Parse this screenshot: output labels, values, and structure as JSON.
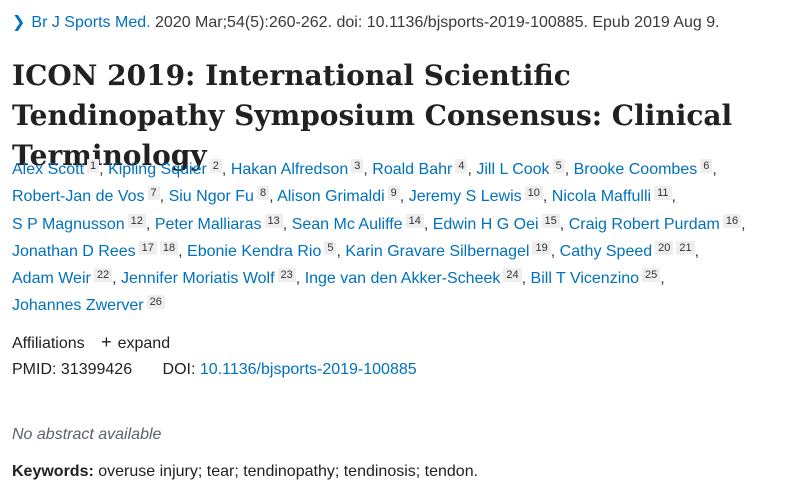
{
  "citation": {
    "chevron_icon": "chevron-right-icon",
    "journal": "Br J Sports Med.",
    "details": "2020 Mar;54(5):260-262. doi: 10.1136/bjsports-2019-100885. Epub 2019 Aug 9."
  },
  "title": "ICON 2019: International Scientific Tendinopathy Symposium Consensus: Clinical Terminology",
  "authors": [
    {
      "name": "Alex Scott",
      "affs": [
        "1"
      ]
    },
    {
      "name": "Kipling Squier",
      "affs": [
        "2"
      ]
    },
    {
      "name": "Hakan Alfredson",
      "affs": [
        "3"
      ]
    },
    {
      "name": "Roald Bahr",
      "affs": [
        "4"
      ]
    },
    {
      "name": "Jill L Cook",
      "affs": [
        "5"
      ]
    },
    {
      "name": "Brooke Coombes",
      "affs": [
        "6"
      ]
    },
    {
      "name": "Robert-Jan de Vos",
      "affs": [
        "7"
      ]
    },
    {
      "name": "Siu Ngor Fu",
      "affs": [
        "8"
      ]
    },
    {
      "name": "Alison Grimaldi",
      "affs": [
        "9"
      ]
    },
    {
      "name": "Jeremy S Lewis",
      "affs": [
        "10"
      ]
    },
    {
      "name": "Nicola Maffulli",
      "affs": [
        "11"
      ]
    },
    {
      "name": "S P Magnusson",
      "affs": [
        "12"
      ]
    },
    {
      "name": "Peter Malliaras",
      "affs": [
        "13"
      ]
    },
    {
      "name": "Sean Mc Auliffe",
      "affs": [
        "14"
      ]
    },
    {
      "name": "Edwin H G Oei",
      "affs": [
        "15"
      ]
    },
    {
      "name": "Craig Robert Purdam",
      "affs": [
        "16"
      ]
    },
    {
      "name": "Jonathan D Rees",
      "affs": [
        "17",
        "18"
      ]
    },
    {
      "name": "Ebonie Kendra Rio",
      "affs": [
        "5"
      ]
    },
    {
      "name": "Karin Gravare Silbernagel",
      "affs": [
        "19"
      ]
    },
    {
      "name": "Cathy Speed",
      "affs": [
        "20",
        "21"
      ]
    },
    {
      "name": "Adam Weir",
      "affs": [
        "22"
      ]
    },
    {
      "name": "Jennifer Moriatis Wolf",
      "affs": [
        "23"
      ]
    },
    {
      "name": "Inge van den Akker-Scheek",
      "affs": [
        "24"
      ]
    },
    {
      "name": "Bill T Vicenzino",
      "affs": [
        "25"
      ]
    },
    {
      "name": "Johannes Zwerver",
      "affs": [
        "26"
      ]
    }
  ],
  "affiliations": {
    "label": "Affiliations",
    "toggle_symbol": "+",
    "toggle_label": "expand"
  },
  "identifiers": {
    "pmid_label": "PMID:",
    "pmid": "31399426",
    "doi_label": "DOI:",
    "doi": "10.1136/bjsports-2019-100885"
  },
  "abstract_note": "No abstract available",
  "keywords": {
    "label": "Keywords:",
    "value": "overuse injury; tear; tendinopathy; tendinosis; tendon."
  }
}
